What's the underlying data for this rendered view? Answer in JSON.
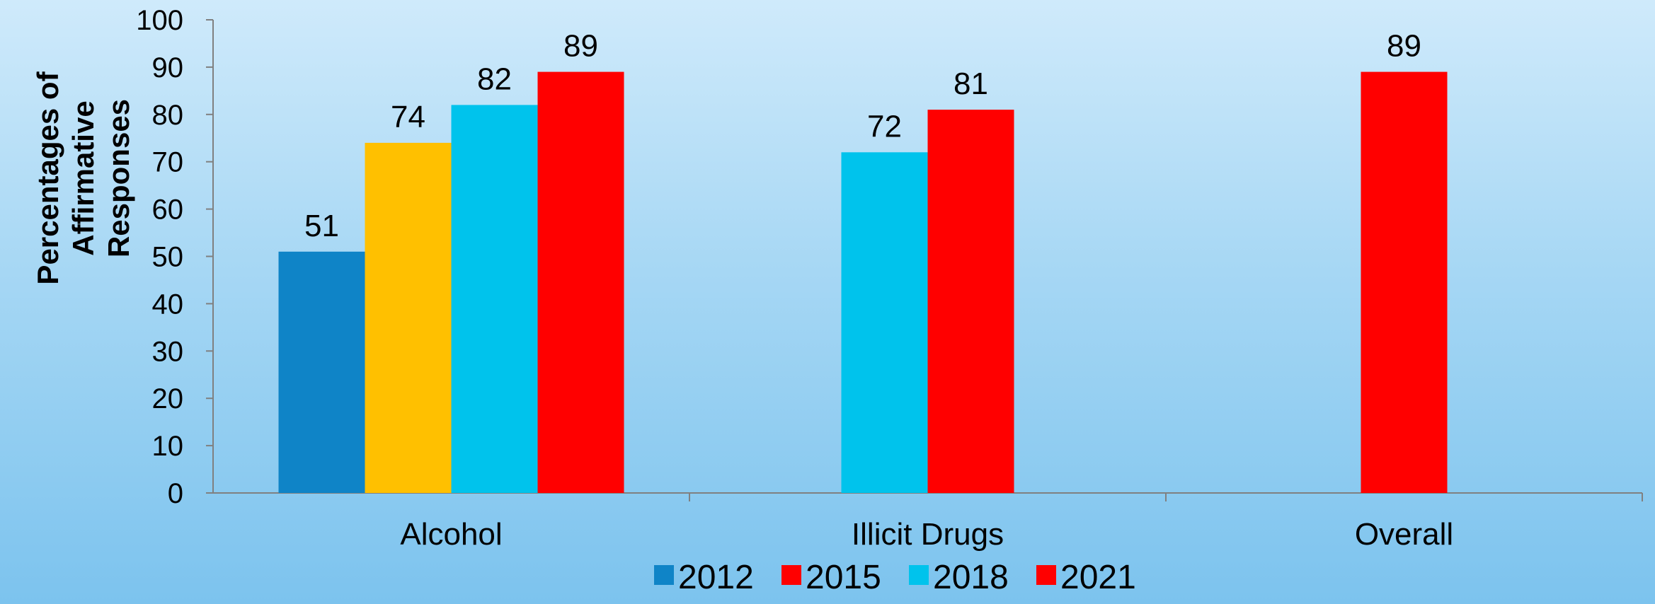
{
  "chart_data": {
    "type": "bar",
    "title": "",
    "xlabel": "",
    "ylabel": [
      "Percentages of",
      "Affirmative",
      "Responses"
    ],
    "ylim": [
      0,
      100
    ],
    "yticks": [
      "0",
      "10",
      "20",
      "30",
      "40",
      "50",
      "60",
      "70",
      "80",
      "90",
      "100"
    ],
    "categories": [
      "Alcohol",
      "Illicit Drugs",
      "Overall"
    ],
    "series": [
      {
        "name": "2012",
        "color": "#0f84c7",
        "values": [
          51,
          null,
          null
        ]
      },
      {
        "name": "2015",
        "color": "#ffc000",
        "legend_color": "#ff0000",
        "values": [
          74,
          null,
          null
        ]
      },
      {
        "name": "2018",
        "color": "#00c3ec",
        "values": [
          82,
          72,
          null
        ]
      },
      {
        "name": "2021",
        "color": "#ff0000",
        "values": [
          89,
          81,
          89
        ]
      }
    ],
    "grid": false,
    "legend": "bottom"
  }
}
